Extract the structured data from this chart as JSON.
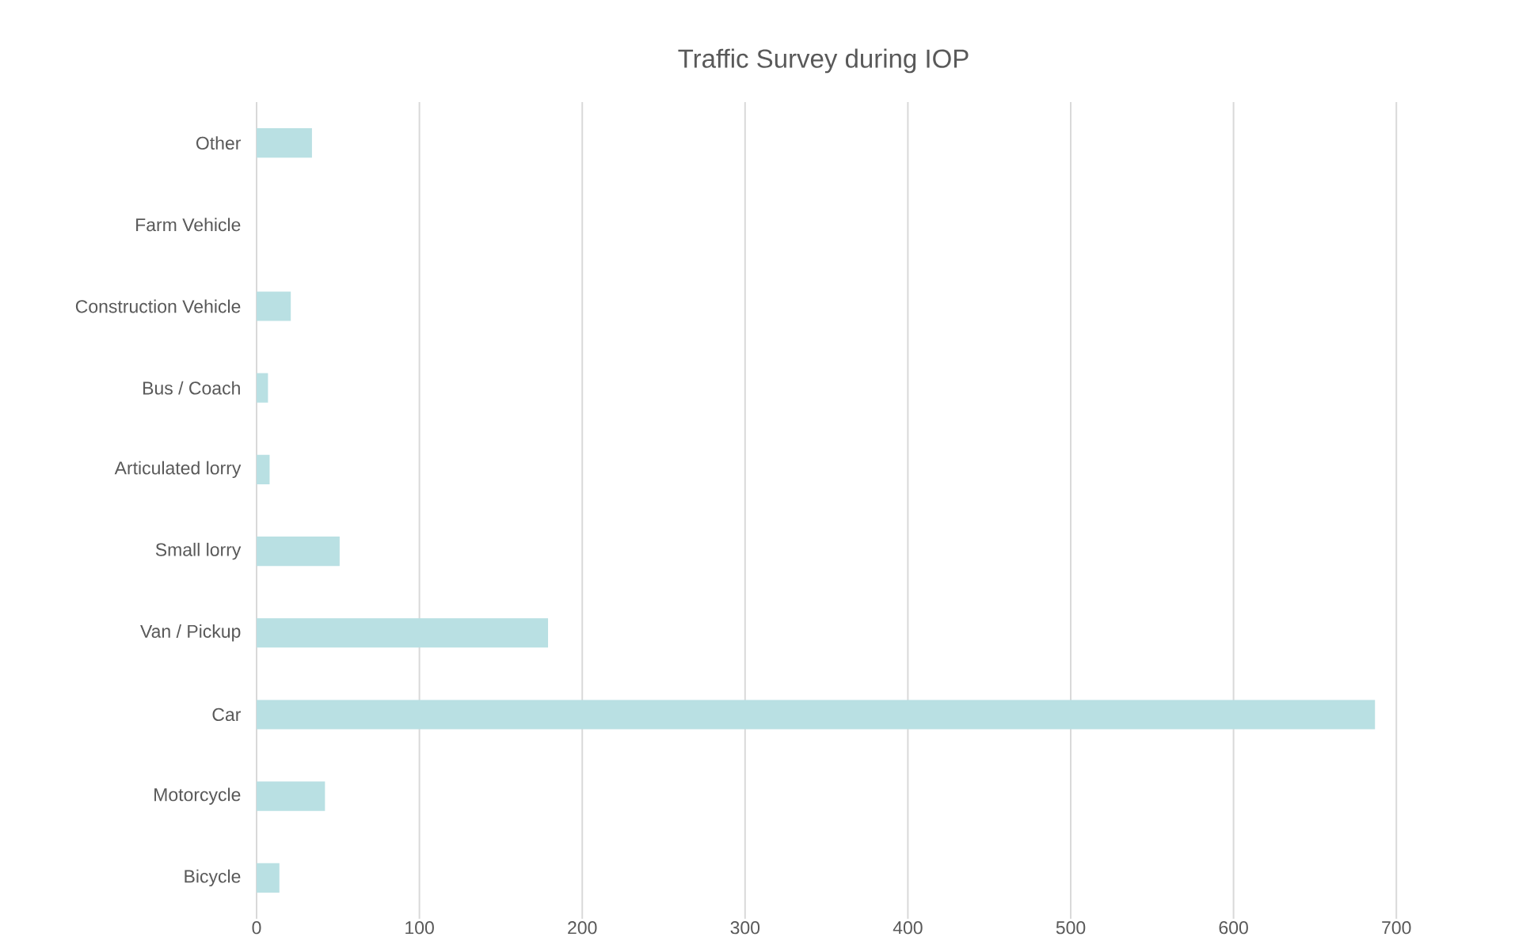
{
  "chart_data": {
    "type": "bar",
    "orientation": "horizontal",
    "title": "Traffic Survey during IOP",
    "categories": [
      "Other",
      "Farm Vehicle",
      "Construction Vehicle",
      "Bus / Coach",
      "Articulated lorry",
      "Small lorry",
      "Van / Pickup",
      "Car",
      "Motorcycle",
      "Bicycle"
    ],
    "values": [
      34,
      0,
      21,
      7,
      8,
      51,
      179,
      687,
      42,
      14
    ],
    "color": "#b9e0e3",
    "xlim": [
      0,
      700
    ],
    "xticks": [
      0,
      100,
      200,
      300,
      400,
      500,
      600,
      700
    ],
    "grid": "x"
  }
}
